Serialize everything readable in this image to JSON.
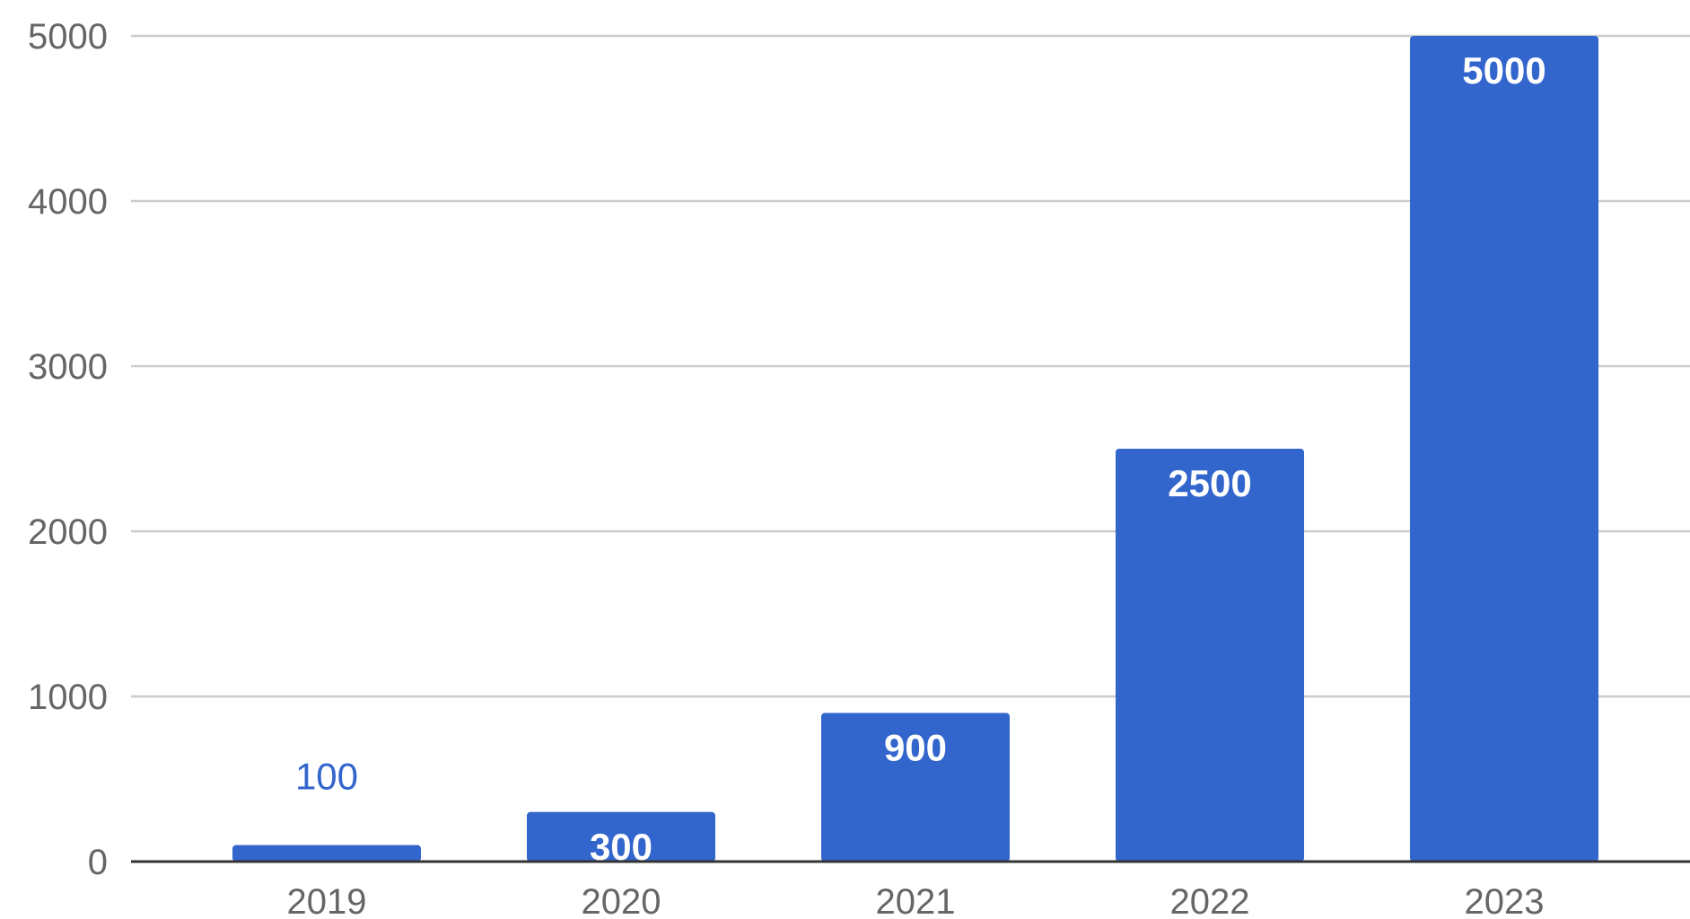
{
  "chart_data": {
    "type": "bar",
    "categories": [
      "2019",
      "2020",
      "2021",
      "2022",
      "2023"
    ],
    "values": [
      100,
      300,
      900,
      2500,
      5000
    ],
    "data_labels": [
      "100",
      "300",
      "900",
      "2500",
      "5000"
    ],
    "y_ticks": [
      "0",
      "1000",
      "2000",
      "3000",
      "4000",
      "5000"
    ],
    "ylim": [
      0,
      5000
    ],
    "grid": true,
    "legend": "none",
    "title": "",
    "xlabel": "",
    "ylabel": ""
  },
  "colors": {
    "bar": "#3366cc",
    "grid": "#cccccc",
    "axis": "#333333",
    "tick_text": "#666666",
    "label_inside": "#ffffff",
    "label_outside": "#3366cc"
  }
}
